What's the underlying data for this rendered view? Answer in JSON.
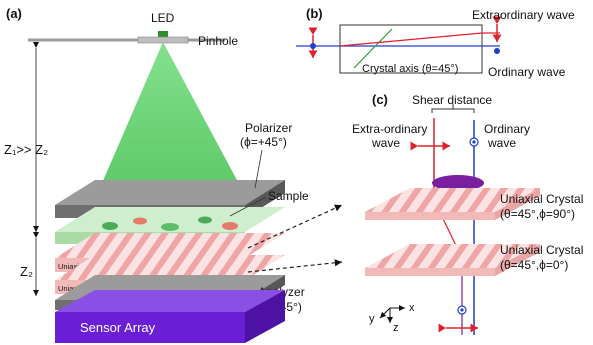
{
  "panels": {
    "a": "(a)",
    "b": "(b)",
    "c": "(c)"
  },
  "panel_a": {
    "led": "LED",
    "pinhole": "Pinhole",
    "z1_relation": "Z₁>> Z₂",
    "z2": "Z₂",
    "polarizer_title": "Polarizer",
    "polarizer_angle": "(ϕ=+45°)",
    "sample": "Sample",
    "crystal_top": "Uniaxial Crystal (θ=45°, ϕ=90°)",
    "crystal_bottom": "Uniaxial Crystal (θ=45°, ϕ=0°)",
    "analyzer_title": "Analyzer",
    "analyzer_angle": "(ϕ=−45°)",
    "sensor_array": "Sensor Array"
  },
  "panel_b": {
    "extraordinary_wave": "Extraordinary wave",
    "ordinary_wave": "Ordinary wave",
    "crystal_axis": "Crystal axis (θ=45°)"
  },
  "panel_c": {
    "shear_distance": "Shear distance",
    "extra_ordinary_line1": "Extra-ordinary",
    "extra_ordinary_line2": "wave",
    "ordinary_line1": "Ordinary",
    "ordinary_line2": "wave",
    "crystal_top_line1": "Uniaxial Crystal",
    "crystal_top_line2": "(θ=45°,ϕ=90°)",
    "crystal_bottom_line1": "Uniaxial Crystal",
    "crystal_bottom_line2": "(θ=45°,ϕ=0°)",
    "axis_x": "x",
    "axis_y": "y",
    "axis_z": "z"
  },
  "colors": {
    "cone_green": "#3fbf4a",
    "sensor_purple": "#6a1fd6",
    "crystal_pink": "#f2b9b9",
    "wave_red": "#e0202a",
    "wave_blue": "#1f3fd0",
    "sample_purple": "#7a1fa0",
    "polarizer_gray": "#6f6f6f"
  }
}
